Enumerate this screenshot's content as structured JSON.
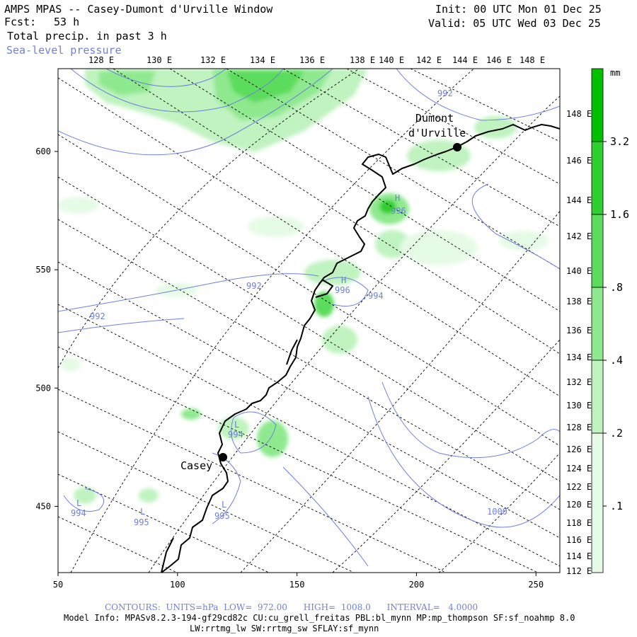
{
  "header": {
    "title": "AMPS MPAS -- Casey-Dumont d'Urville Window",
    "forecast_label": "Fcst:",
    "forecast_hours": "53 h",
    "field": "Total precip. in past 3 h",
    "overlay": "Sea-level pressure",
    "init": "Init: 00 UTC Mon 01 Dec 25",
    "valid": "Valid: 05 UTC Wed 03 Dec 25"
  },
  "colors": {
    "contour": "#6f7fe0",
    "coast": "#000000",
    "precip_levels": [
      "#ffffff",
      "#e6fbe6",
      "#c0f3c0",
      "#8fe98f",
      "#5cdc5c",
      "#2ecf2e",
      "#00c000"
    ]
  },
  "colorbar": {
    "unit": "mm",
    "labels": [
      "3.2",
      "1.6",
      ".8",
      ".4",
      ".2",
      ".1"
    ]
  },
  "chart_data": {
    "type": "map",
    "x_axis_ticks": [
      "50",
      "100",
      "150",
      "200",
      "250"
    ],
    "y_axis_ticks": [
      "600",
      "550",
      "500",
      "450"
    ],
    "lon_labels_top": [
      "128 E",
      "130 E",
      "132 E",
      "134 E",
      "136 E",
      "138 E",
      "140 E",
      "142 E",
      "144 E",
      "146 E",
      "148 E"
    ],
    "lat_labels_right": [
      "148 E",
      "146 E",
      "144 E",
      "142 E",
      "140 E",
      "138 E",
      "136 E",
      "134 E",
      "132 E",
      "130 E",
      "128 E",
      "126 E",
      "124 E",
      "122 E",
      "120 E",
      "118 E",
      "116 E",
      "114 E",
      "112 E"
    ],
    "stations": [
      {
        "name": "Casey"
      },
      {
        "name_line1": "Dumont",
        "name_line2": "d'Urville"
      }
    ],
    "pressure_labels": [
      {
        "text": "992"
      },
      {
        "text": "992"
      },
      {
        "text": "992"
      },
      {
        "text": "996",
        "mark": "H"
      },
      {
        "text": "996",
        "mark": "H"
      },
      {
        "text": "994"
      },
      {
        "text": "994",
        "mark": "L"
      },
      {
        "text": "994",
        "mark": "L"
      },
      {
        "text": "995",
        "mark": "L"
      },
      {
        "text": "995",
        "mark": "L"
      },
      {
        "text": "1000"
      }
    ]
  },
  "footer": {
    "contours": "CONTOURS:  UNITS=hPa  LOW=  972.00      HIGH=  1008.0      INTERVAL=   4.0000",
    "model_info": "Model Info: MPASv8.2.3-194-gf29cd82c CU:cu_grell_freitas PBL:bl_mynn MP:mp_thompson SF:sf_noahmp 8.0",
    "model_info2": "LW:rrtmg_lw SW:rrtmg_sw SFLAY:sf_mynn"
  }
}
